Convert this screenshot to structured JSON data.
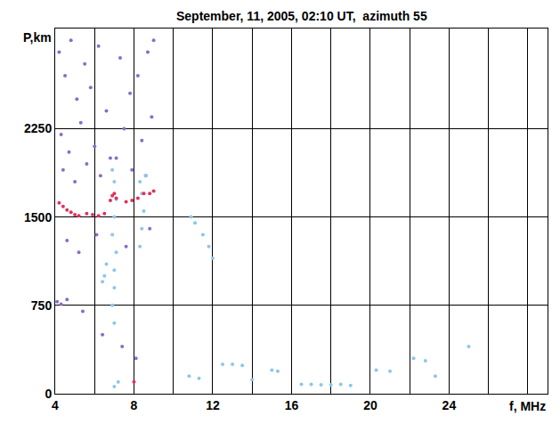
{
  "chart_data": {
    "type": "scatter",
    "title": "September, 11, 2005, 02:10 UT,  azimuth 55",
    "x_label": "f, MHz",
    "y_label": "P,km",
    "xlim": [
      4,
      29
    ],
    "xticks": [
      4,
      8,
      12,
      16,
      20,
      24
    ],
    "ylim": [
      0,
      3100
    ],
    "yticks": [
      0,
      750,
      1500,
      2250
    ],
    "grid": true,
    "series": [
      {
        "color": "#8a6cc8",
        "x": [
          4.2,
          4.5,
          4.8,
          5.1,
          5.5,
          5.8,
          6.2,
          6.6,
          7.3,
          7.8,
          8.2,
          8.7,
          9.0,
          4.3,
          4.7,
          5.3,
          6.0,
          6.8,
          7.5,
          8.4,
          8.9,
          4.4,
          5.0,
          5.6,
          6.3,
          7.1,
          7.9,
          8.6,
          4.6,
          5.2,
          6.1,
          7.6,
          8.8,
          4.1,
          4.3,
          4.6,
          5.4,
          6.4,
          7.4,
          8.1
        ],
        "values": [
          2900,
          2700,
          3000,
          2500,
          2800,
          2600,
          2950,
          2400,
          2850,
          2550,
          2700,
          2900,
          3000,
          2200,
          2050,
          2300,
          2100,
          2000,
          2250,
          2150,
          2350,
          1900,
          1800,
          1950,
          1850,
          2000,
          1900,
          1850,
          1300,
          1200,
          1350,
          1250,
          1400,
          780,
          760,
          800,
          700,
          500,
          400,
          300
        ]
      },
      {
        "color": "#8ec5ea",
        "x": [
          6.9,
          7.0,
          7.0,
          7.1,
          6.9,
          7.0,
          7.1,
          7.0,
          6.9,
          7.0,
          8.3,
          8.4,
          8.5,
          8.4,
          8.3,
          8.6,
          6.4,
          6.5,
          6.6,
          10.9,
          11.1,
          11.8,
          7.0,
          7.2,
          10.8,
          11.3,
          12.5,
          13.0,
          13.5,
          14.0,
          15.0,
          15.3,
          16.5,
          17.0,
          17.5,
          18.0,
          18.5,
          19.0,
          20.3,
          21.0,
          22.2,
          22.8,
          23.3,
          25.0,
          11.5,
          12.0
        ],
        "values": [
          750,
          900,
          1050,
          1200,
          1350,
          1500,
          1650,
          1800,
          1900,
          600,
          1250,
          1400,
          1550,
          1700,
          1800,
          1850,
          950,
          1000,
          1100,
          1500,
          1450,
          1250,
          60,
          100,
          150,
          130,
          250,
          250,
          240,
          120,
          200,
          190,
          80,
          80,
          75,
          75,
          80,
          70,
          200,
          190,
          300,
          280,
          150,
          400,
          1350,
          1150
        ]
      },
      {
        "color": "#e0305a",
        "x": [
          4.2,
          4.4,
          4.6,
          4.8,
          5.0,
          5.2,
          5.6,
          5.9,
          6.2,
          6.5,
          6.8,
          6.9,
          7.0,
          7.1,
          7.6,
          7.9,
          8.2,
          8.5,
          8.8,
          9.0,
          8.0
        ],
        "values": [
          1620,
          1590,
          1560,
          1540,
          1520,
          1510,
          1530,
          1520,
          1510,
          1530,
          1640,
          1680,
          1700,
          1660,
          1630,
          1640,
          1660,
          1700,
          1700,
          1720,
          100
        ]
      }
    ]
  }
}
